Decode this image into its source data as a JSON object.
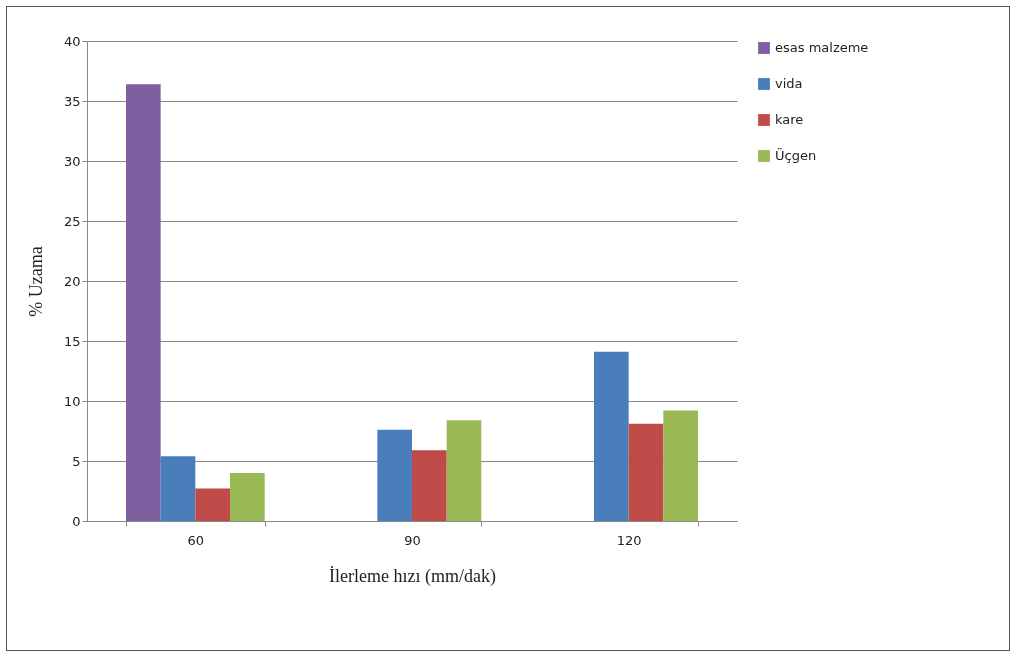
{
  "chart_data": {
    "type": "bar",
    "xlabel": "İlerleme hızı (mm/dak)",
    "ylabel": "% Uzama",
    "categories": [
      "60",
      "90",
      "120"
    ],
    "series": [
      {
        "name": "esas malzeme",
        "color": "#7f5fa0",
        "values": [
          36.4,
          null,
          null
        ]
      },
      {
        "name": "vida",
        "color": "#4a7ebb",
        "values": [
          5.4,
          7.6,
          14.1
        ]
      },
      {
        "name": "kare",
        "color": "#be4b48",
        "values": [
          2.7,
          5.9,
          8.1
        ]
      },
      {
        "name": "Üçgen",
        "color": "#98b954",
        "values": [
          4.0,
          8.4,
          9.2
        ]
      }
    ],
    "ylim": [
      0,
      40
    ],
    "yticks": [
      0,
      5,
      10,
      15,
      20,
      25,
      30,
      35,
      40
    ],
    "grid": "y",
    "legend": "right"
  }
}
